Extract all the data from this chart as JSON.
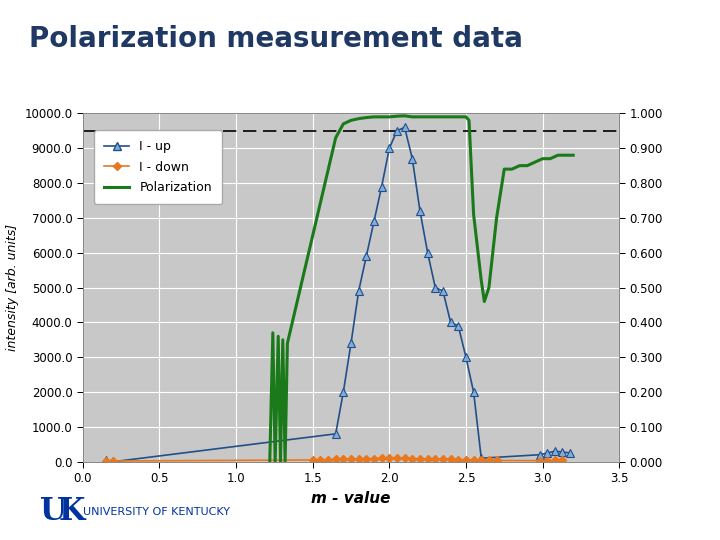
{
  "title": "Polarization measurement data",
  "title_color": "#1F3864",
  "title_fontsize": 20,
  "xlabel": "m - value",
  "ylabel": "intensity [arb. units]",
  "dashed_line_y": 9500,
  "xlim": [
    0.0,
    3.5
  ],
  "ylim": [
    0.0,
    10000.0
  ],
  "ylim2": [
    0.0,
    1.0
  ],
  "yticks": [
    0.0,
    1000.0,
    2000.0,
    3000.0,
    4000.0,
    5000.0,
    6000.0,
    7000.0,
    8000.0,
    9000.0,
    10000.0
  ],
  "yticks2": [
    0.0,
    0.1,
    0.2,
    0.3,
    0.4,
    0.5,
    0.6,
    0.7,
    0.8,
    0.9,
    1.0
  ],
  "xticks": [
    0.0,
    0.5,
    1.0,
    1.5,
    2.0,
    2.5,
    3.0,
    3.5
  ],
  "I_up_x": [
    0.15,
    0.2,
    1.65,
    1.7,
    1.75,
    1.8,
    1.85,
    1.9,
    1.95,
    2.0,
    2.05,
    2.1,
    2.15,
    2.2,
    2.25,
    2.3,
    2.35,
    2.4,
    2.45,
    2.5,
    2.55,
    2.6,
    2.98,
    3.03,
    3.08,
    3.13,
    3.18
  ],
  "I_up_y": [
    50,
    0,
    800,
    2000,
    3400,
    4900,
    5900,
    6900,
    7900,
    9000,
    9500,
    9600,
    8700,
    7200,
    6000,
    5000,
    4900,
    4000,
    3900,
    3000,
    2000,
    100,
    200,
    250,
    300,
    280,
    250
  ],
  "I_down_x": [
    0.15,
    0.2,
    1.5,
    1.55,
    1.6,
    1.65,
    1.7,
    1.75,
    1.8,
    1.85,
    1.9,
    1.95,
    2.0,
    2.05,
    2.1,
    2.15,
    2.2,
    2.25,
    2.3,
    2.35,
    2.4,
    2.45,
    2.5,
    2.55,
    2.6,
    2.65,
    2.7,
    2.98,
    3.03,
    3.08,
    3.13
  ],
  "I_down_y": [
    30,
    20,
    50,
    55,
    60,
    65,
    70,
    75,
    80,
    85,
    90,
    95,
    100,
    100,
    95,
    90,
    85,
    80,
    75,
    70,
    65,
    60,
    55,
    50,
    45,
    40,
    35,
    30,
    30,
    35,
    35
  ],
  "pol_x": [
    1.22,
    1.24,
    1.255,
    1.275,
    1.29,
    1.305,
    1.32,
    1.335,
    1.65,
    1.7,
    1.75,
    1.8,
    1.85,
    1.9,
    1.95,
    2.0,
    2.05,
    2.1,
    2.15,
    2.2,
    2.25,
    2.3,
    2.35,
    2.4,
    2.45,
    2.5,
    2.52,
    2.55,
    2.6,
    2.62,
    2.65,
    2.7,
    2.75,
    2.8,
    2.85,
    2.9,
    2.95,
    3.0,
    3.05,
    3.1,
    3.15,
    3.2
  ],
  "pol_y": [
    0.0,
    0.37,
    0.0,
    0.36,
    0.0,
    0.35,
    0.0,
    0.34,
    0.93,
    0.97,
    0.98,
    0.985,
    0.988,
    0.99,
    0.99,
    0.99,
    0.992,
    0.993,
    0.99,
    0.99,
    0.99,
    0.99,
    0.99,
    0.99,
    0.99,
    0.99,
    0.98,
    0.71,
    0.52,
    0.46,
    0.5,
    0.7,
    0.84,
    0.84,
    0.85,
    0.85,
    0.86,
    0.87,
    0.87,
    0.88,
    0.88,
    0.88
  ],
  "I_up_color": "#214F8A",
  "I_up_marker_color": "#7FAEDC",
  "I_down_color": "#E87820",
  "pol_color": "#1A7A1A",
  "white_bg": "#FFFFFF",
  "plot_bg": "#C8C8C8",
  "outer_bg": "#C8C8C8",
  "gold_color": "#C8A020",
  "uk_blue": "#0033A0"
}
